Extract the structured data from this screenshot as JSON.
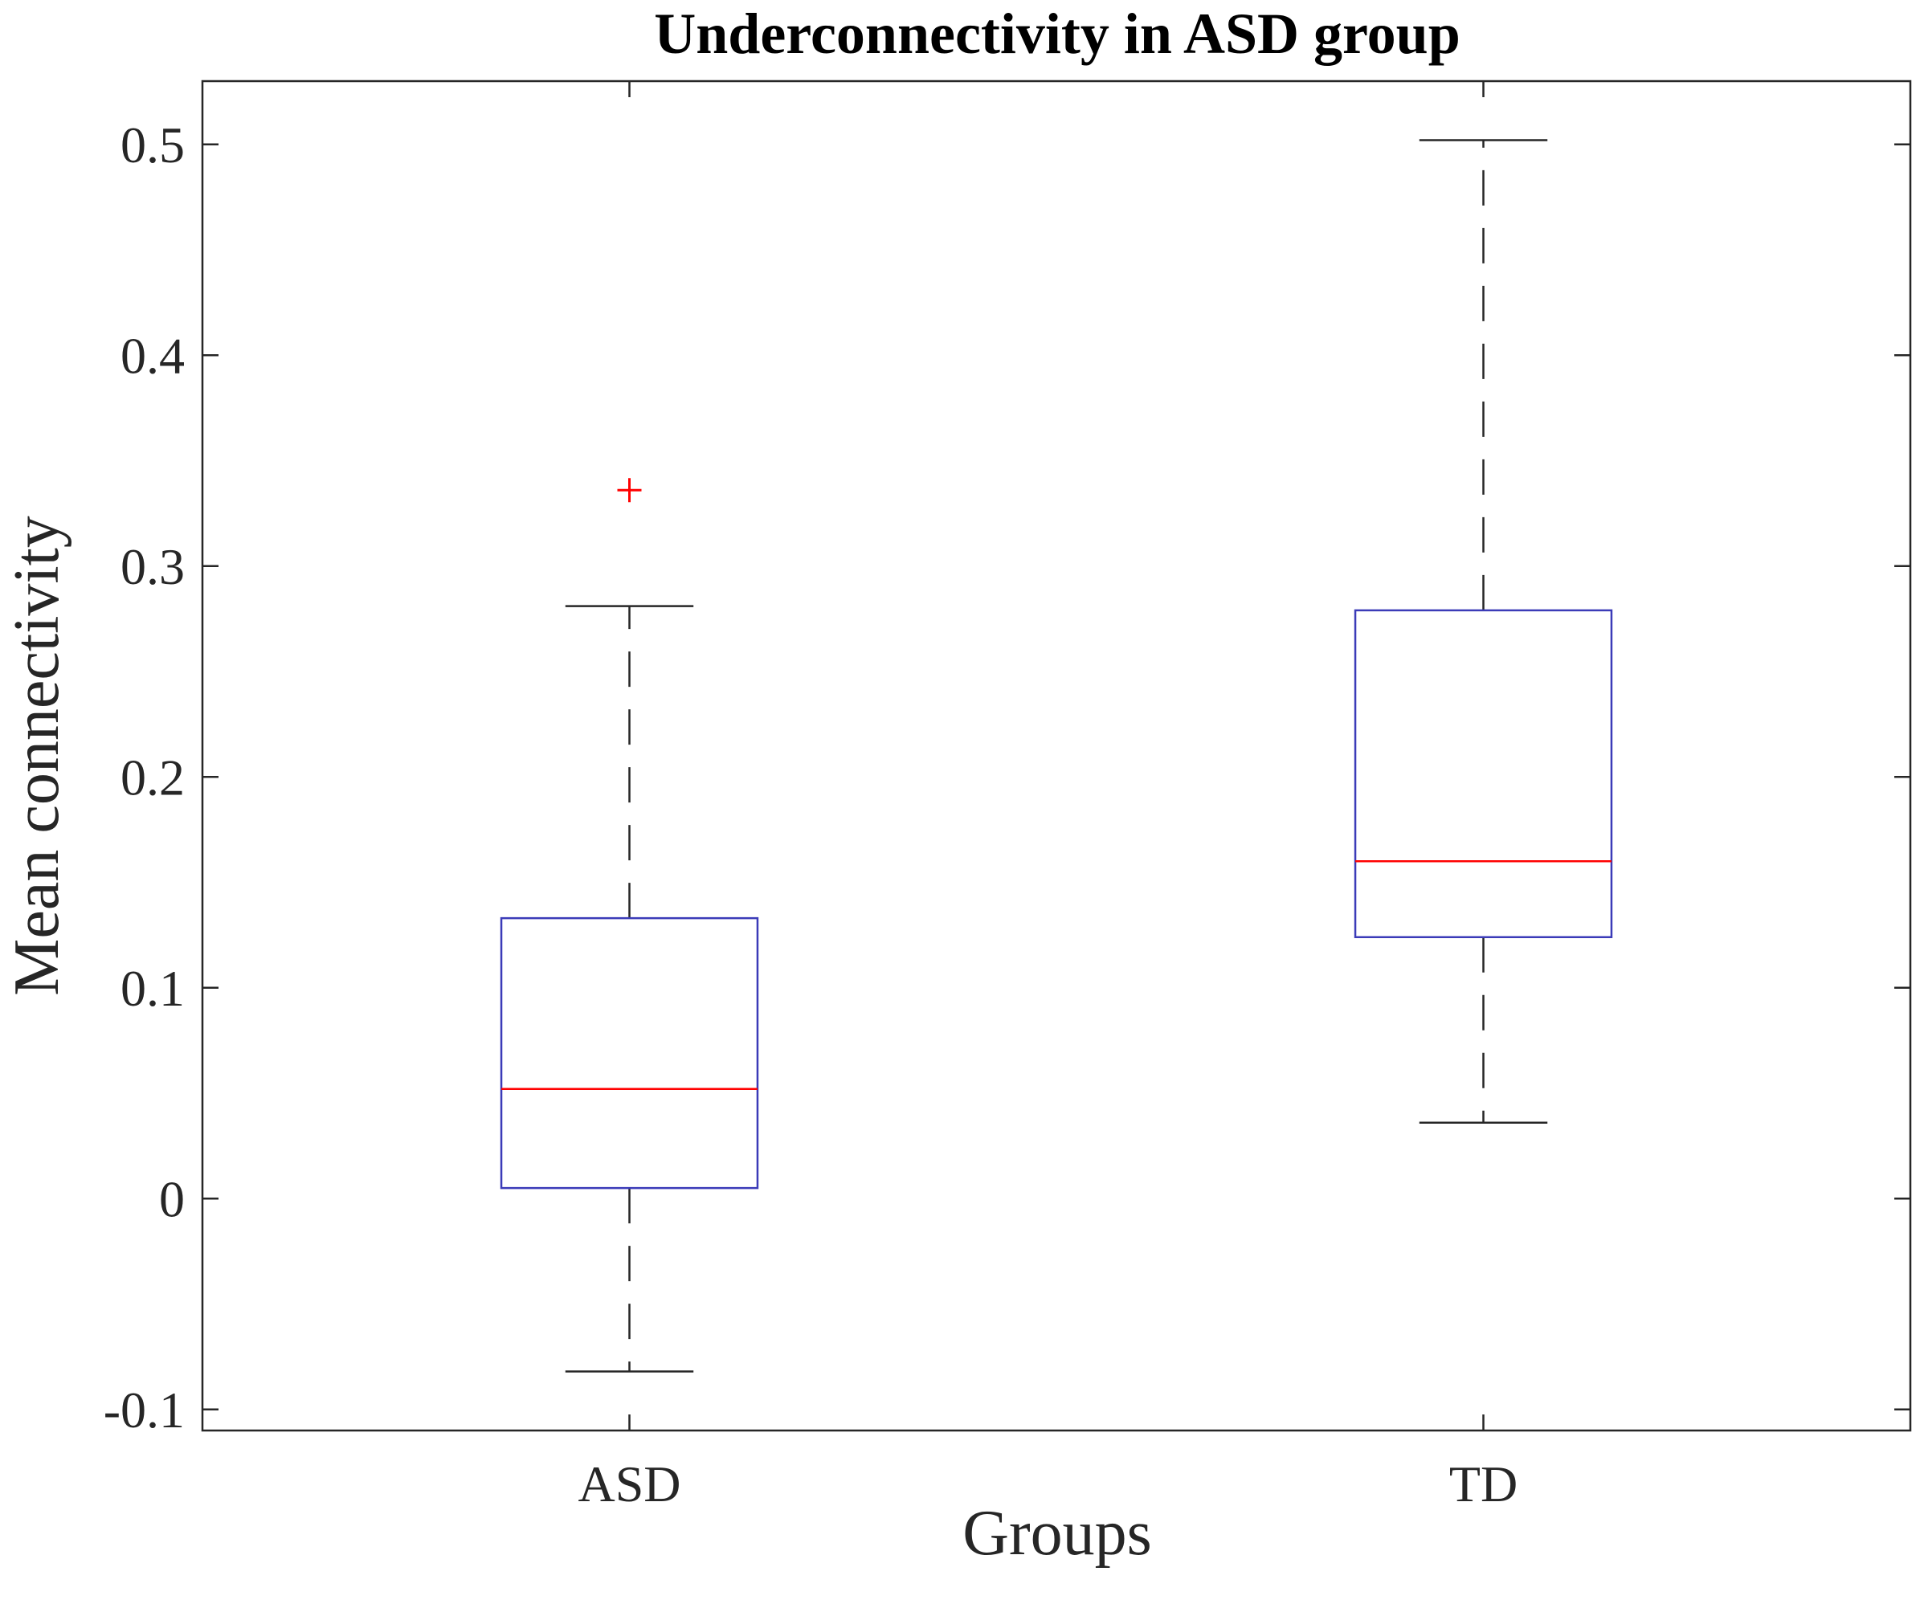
{
  "chart_data": {
    "type": "boxplot",
    "title": "Underconnectivity in ASD group",
    "xlabel": "Groups",
    "ylabel": "Mean connectivity",
    "categories": [
      "ASD",
      "TD"
    ],
    "ylim": [
      -0.11,
      0.53
    ],
    "yticks": [
      -0.1,
      0,
      0.1,
      0.2,
      0.3,
      0.4,
      0.5
    ],
    "ytick_labels": [
      "-0.1",
      "0",
      "0.1",
      "0.2",
      "0.3",
      "0.4",
      "0.5"
    ],
    "grid": false,
    "boxes": [
      {
        "category": "ASD",
        "whisker_low": -0.082,
        "q1": 0.005,
        "median": 0.052,
        "q3": 0.133,
        "whisker_high": 0.281,
        "outliers": [
          0.336
        ]
      },
      {
        "category": "TD",
        "whisker_low": 0.036,
        "q1": 0.124,
        "median": 0.16,
        "q3": 0.279,
        "whisker_high": 0.502,
        "outliers": []
      }
    ],
    "colors": {
      "box": "#3b3bb8",
      "median": "#ff0000",
      "outlier": "#ff0000",
      "whisker": "#262626",
      "axes": "#262626"
    }
  }
}
